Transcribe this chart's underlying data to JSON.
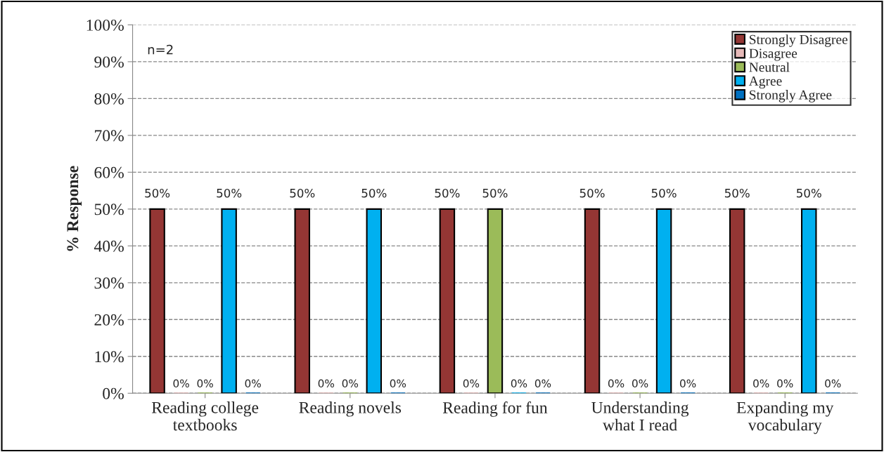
{
  "chart_data": {
    "type": "bar",
    "ylabel": "% Response",
    "categories": [
      "Reading college\ntextbooks",
      "Reading novels",
      "Reading for fun",
      "Understanding\nwhat I read",
      "Expanding my\nvocabulary"
    ],
    "series": [
      {
        "name": "Strongly Disagree",
        "color": "#943634",
        "values": [
          50,
          50,
          50,
          50,
          50
        ],
        "value_labels": [
          "50%",
          "50%",
          "50%",
          "50%",
          "50%"
        ]
      },
      {
        "name": "Disagree",
        "color": "#e6b9b8",
        "values": [
          0,
          0,
          0,
          0,
          0
        ],
        "value_labels": [
          "0%",
          "0%",
          "0%",
          "0%",
          "0%"
        ]
      },
      {
        "name": "Neutral",
        "color": "#9bbb59",
        "values": [
          0,
          0,
          50,
          0,
          0
        ],
        "value_labels": [
          "0%",
          "0%",
          "50%",
          "0%",
          "0%"
        ]
      },
      {
        "name": "Agree",
        "color": "#00b0f0",
        "values": [
          50,
          50,
          0,
          50,
          50
        ],
        "value_labels": [
          "50%",
          "50%",
          "0%",
          "50%",
          "50%"
        ]
      },
      {
        "name": "Strongly Agree",
        "color": "#0070c0",
        "values": [
          0,
          0,
          0,
          0,
          0
        ],
        "value_labels": [
          "0%",
          "0%",
          "0%",
          "0%",
          "0%"
        ]
      }
    ],
    "ylim": [
      0,
      100
    ],
    "yticks": [
      {
        "value": 0,
        "label": "0%"
      },
      {
        "value": 10,
        "label": "10%"
      },
      {
        "value": 20,
        "label": "20%"
      },
      {
        "value": 30,
        "label": "30%"
      },
      {
        "value": 40,
        "label": "40%"
      },
      {
        "value": 50,
        "label": "50%"
      },
      {
        "value": 60,
        "label": "60%"
      },
      {
        "value": 70,
        "label": "70%"
      },
      {
        "value": 80,
        "label": "80%"
      },
      {
        "value": 90,
        "label": "90%"
      },
      {
        "value": 100,
        "label": "100%"
      }
    ],
    "grid": "y",
    "legend": "top right",
    "annotations": [
      "n=2"
    ]
  }
}
